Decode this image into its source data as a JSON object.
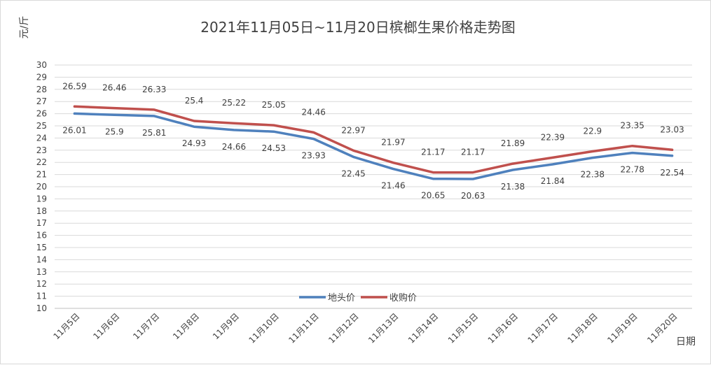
{
  "chart_data": {
    "type": "line",
    "title": "2021年11月05日~11月20日槟榔生果价格走势图",
    "xlabel": "日期",
    "ylabel": "元/斤",
    "ylim": [
      10,
      30
    ],
    "yticks": [
      10,
      11,
      12,
      13,
      14,
      15,
      16,
      17,
      18,
      19,
      20,
      21,
      22,
      23,
      24,
      25,
      26,
      27,
      28,
      29,
      30
    ],
    "grid": true,
    "legend_position": "bottom-center",
    "categories": [
      "11月5日",
      "11月6日",
      "11月7日",
      "11月8日",
      "11月9日",
      "11月10日",
      "11月11日",
      "11月12日",
      "11月13日",
      "11月14日",
      "11月15日",
      "11月16日",
      "11月17日",
      "11月18日",
      "11月19日",
      "11月20日"
    ],
    "series": [
      {
        "name": "地头价",
        "color": "#4f81bd",
        "values": [
          26.01,
          25.9,
          25.81,
          24.93,
          24.66,
          24.53,
          23.93,
          22.45,
          21.46,
          20.65,
          20.63,
          21.38,
          21.84,
          22.38,
          22.78,
          22.54
        ]
      },
      {
        "name": "收购价",
        "color": "#c0504d",
        "values": [
          26.59,
          26.46,
          26.33,
          25.4,
          25.22,
          25.05,
          24.46,
          22.97,
          21.97,
          21.17,
          21.17,
          21.89,
          22.39,
          22.9,
          23.35,
          23.03
        ]
      }
    ]
  }
}
